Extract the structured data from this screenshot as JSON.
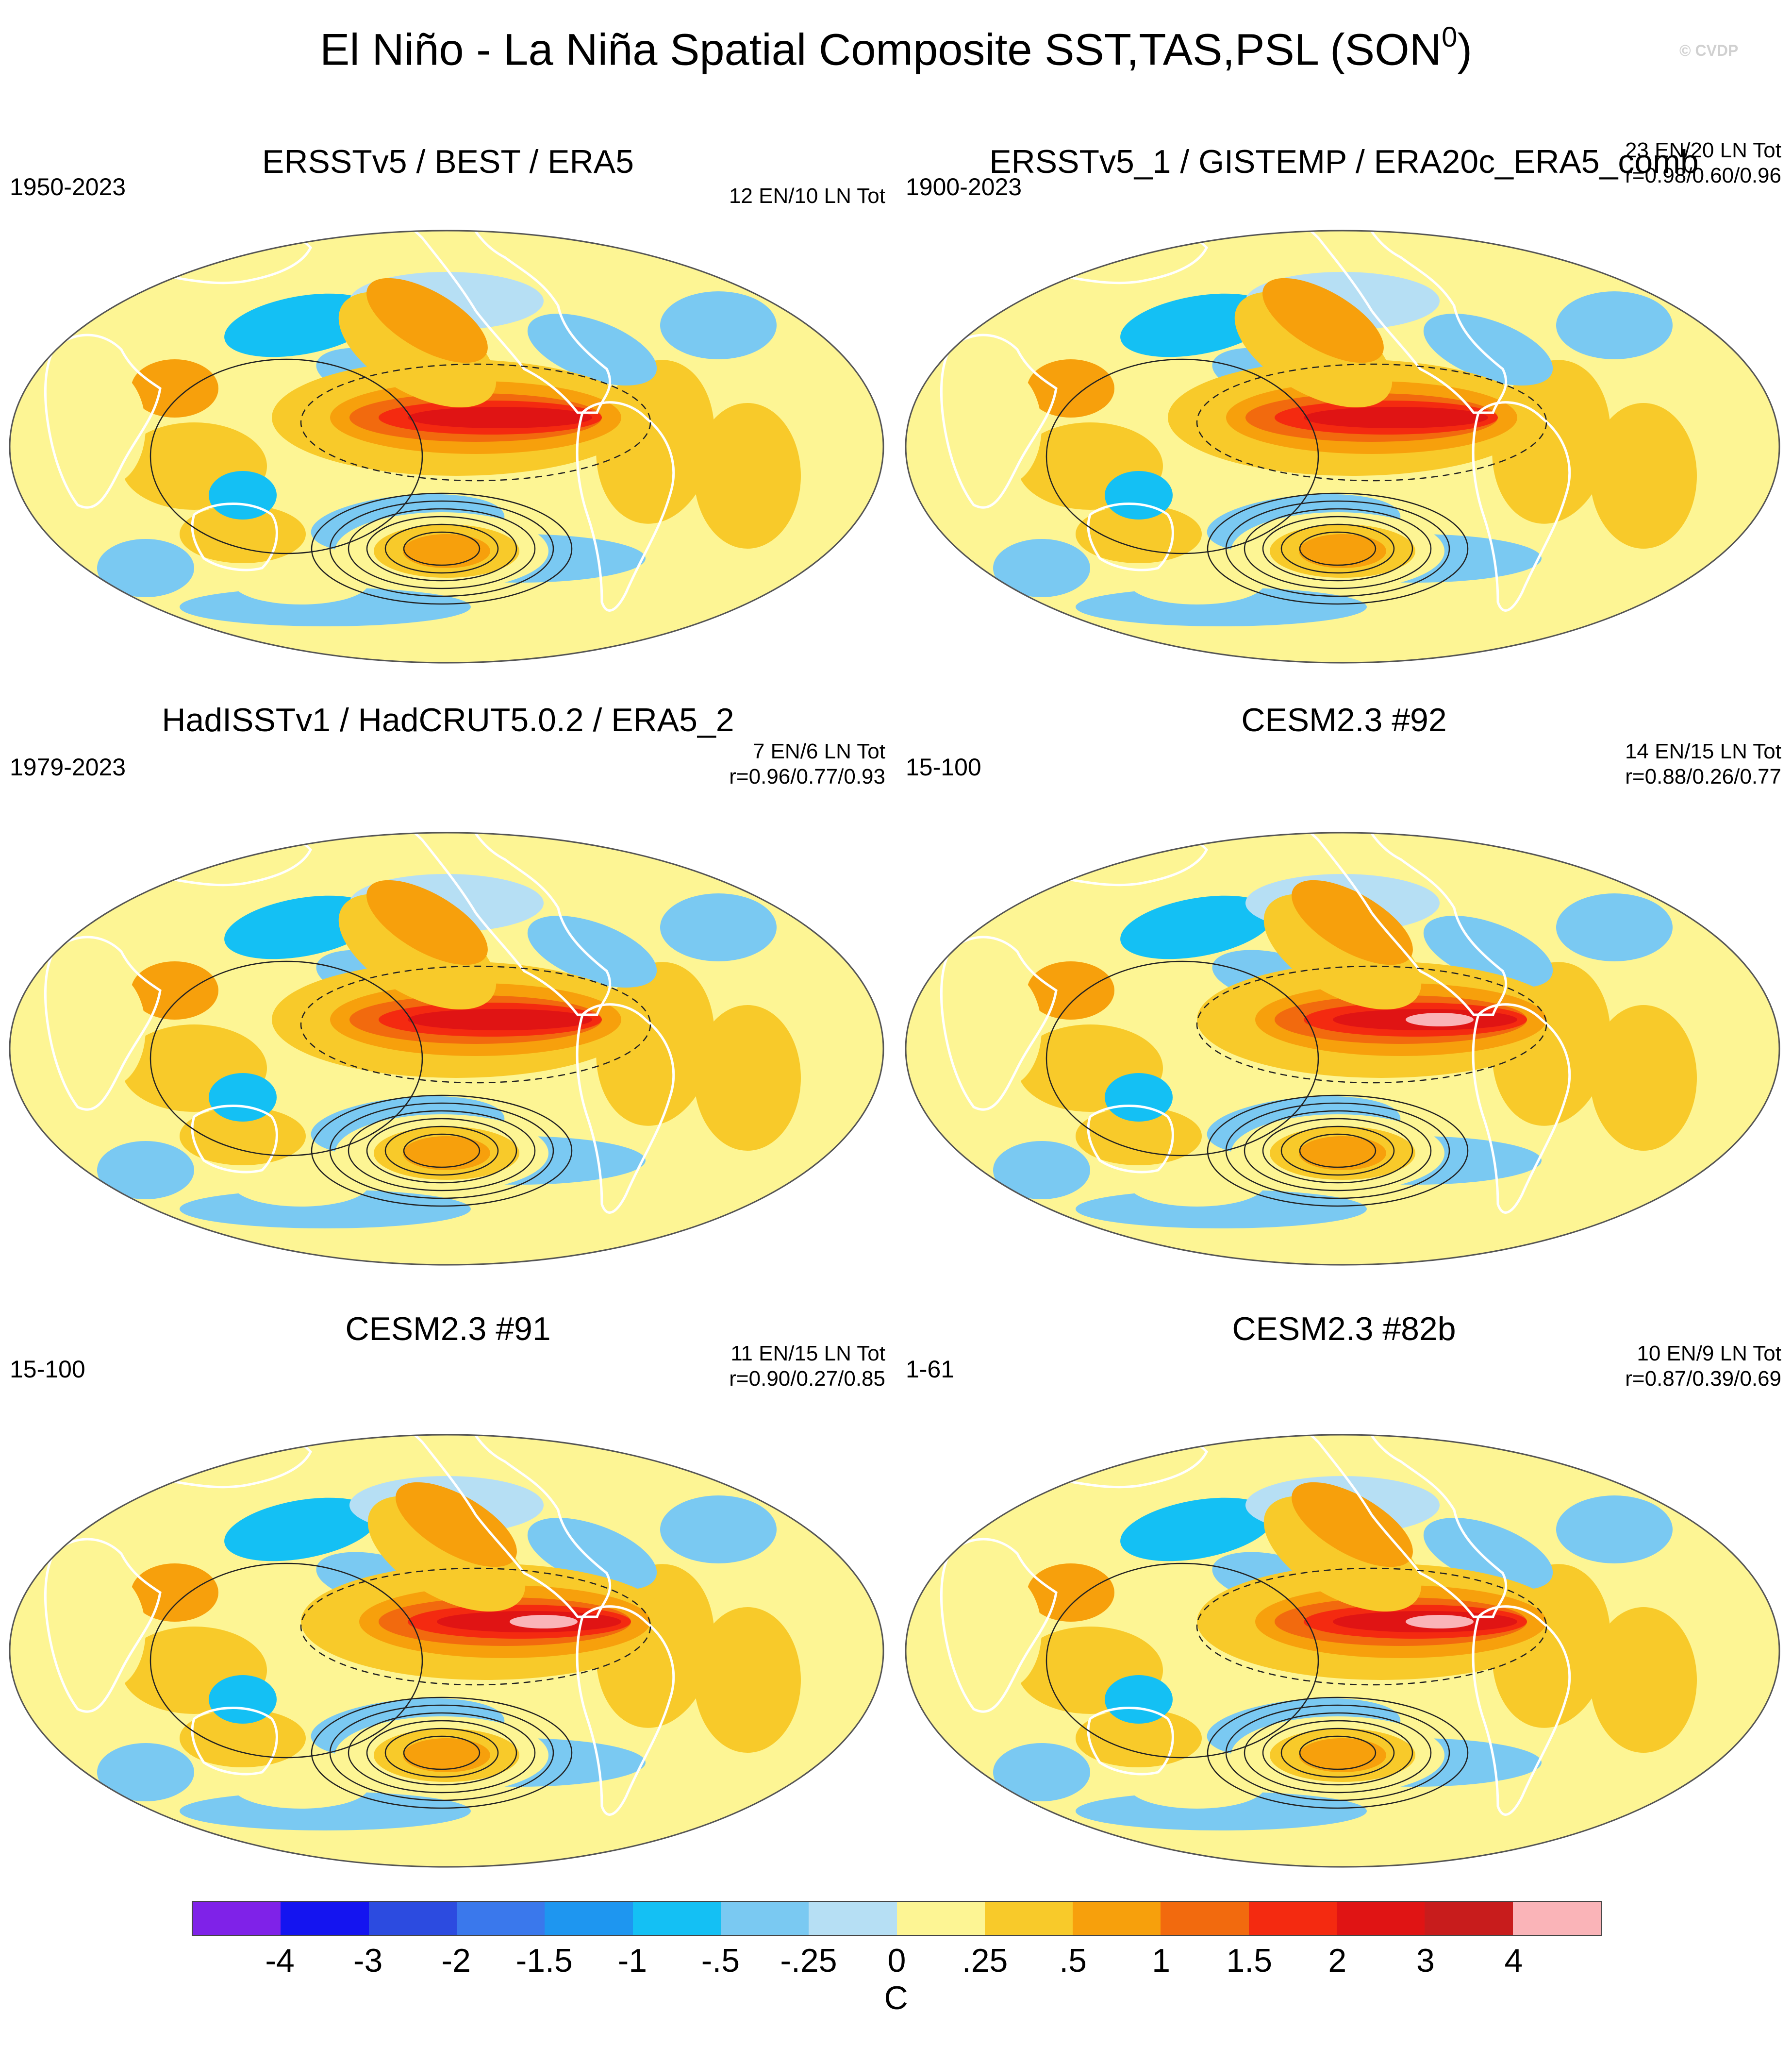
{
  "title": {
    "main": "El Niño - La Niña Spatial Composite SST,TAS,PSL (SON",
    "superscript": "0",
    "close": ")"
  },
  "watermark": "© CVDP",
  "panels": [
    {
      "title": "ERSSTv5 / BEST / ERA5",
      "period": "1950-2023",
      "count": "12 EN/10 LN Tot",
      "corr": ""
    },
    {
      "title": "ERSSTv5_1 / GISTEMP / ERA20c_ERA5_comb",
      "period": "1900-2023",
      "count": "23 EN/20 LN Tot",
      "corr": "r=0.98/0.60/0.96"
    },
    {
      "title": "HadISSTv1 / HadCRUT5.0.2 / ERA5_2",
      "period": "1979-2023",
      "count": "7 EN/6 LN Tot",
      "corr": "r=0.96/0.77/0.93"
    },
    {
      "title": "CESM2.3 #92",
      "period": "15-100",
      "count": "14 EN/15 LN Tot",
      "corr": "r=0.88/0.26/0.77"
    },
    {
      "title": "CESM2.3 #91",
      "period": "15-100",
      "count": "11 EN/15 LN Tot",
      "corr": "r=0.90/0.27/0.85"
    },
    {
      "title": "CESM2.3 #82b",
      "period": "1-61",
      "count": "10 EN/9 LN Tot",
      "corr": "r=0.87/0.39/0.69"
    }
  ],
  "chart_data": {
    "type": "heatmap",
    "projection": "robinson-global",
    "variables": [
      "SST",
      "TAS",
      "PSL"
    ],
    "season": "SON",
    "shading": "SST/TAS composite anomaly (El Niño minus La Niña)",
    "contours": "PSL composite anomaly",
    "colorbar": {
      "units": "C",
      "tick_labels": [
        "-4",
        "-3",
        "-2",
        "-1.5",
        "-1",
        "-.5",
        "-.25",
        "0",
        ".25",
        ".5",
        "1",
        "1.5",
        "2",
        "3",
        "4"
      ],
      "levels": [
        -4,
        -3,
        -2,
        -1.5,
        -1,
        -0.5,
        -0.25,
        0,
        0.25,
        0.5,
        1,
        1.5,
        2,
        3,
        4
      ],
      "colors": [
        "#7f22e8",
        "#1414f0",
        "#2c4be0",
        "#3a78ec",
        "#1e96f0",
        "#14c0f4",
        "#7ac9f2",
        "#b6dff4",
        "#fdf594",
        "#f8ca2a",
        "#f7a00c",
        "#f26a0e",
        "#f42a10",
        "#e01414",
        "#c81c1c",
        "#fab4b8"
      ]
    }
  }
}
